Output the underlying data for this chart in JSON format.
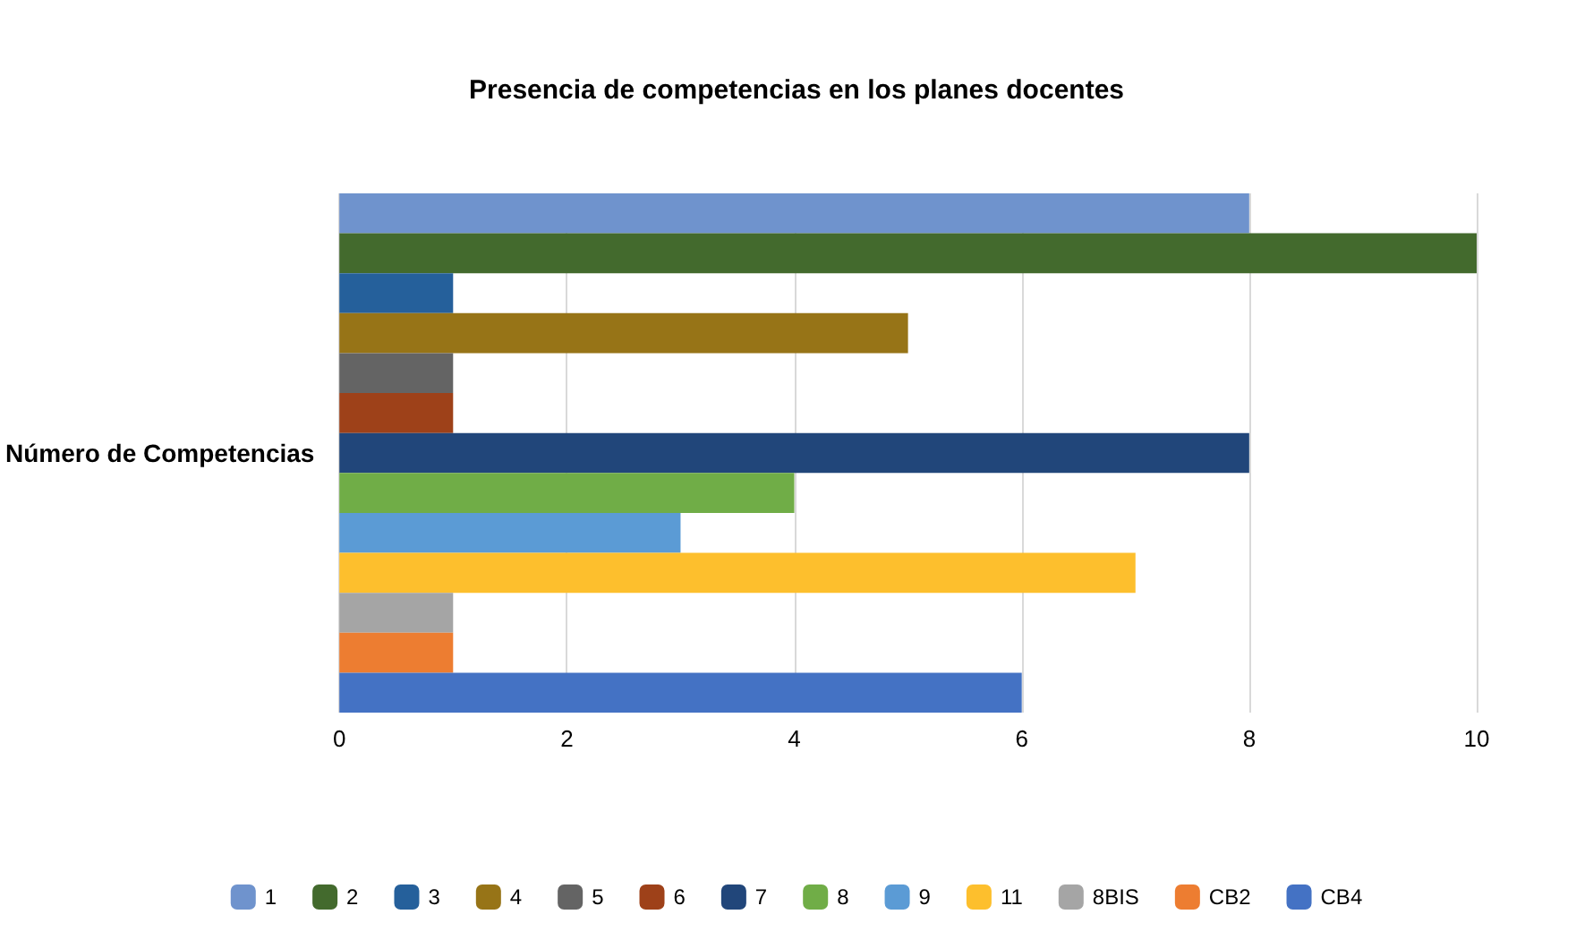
{
  "chart_data": {
    "type": "bar",
    "orientation": "horizontal",
    "title": "Presencia de competencias en los planes docentes",
    "ylabel": "Número de Competencias",
    "categories": [
      null,
      null,
      null,
      null,
      null,
      null,
      null,
      null,
      null,
      null,
      null,
      null,
      null
    ],
    "series": [
      {
        "name": "1",
        "color": "#6f93cd",
        "values": [
          8,
          null,
          null,
          null,
          null,
          null,
          null,
          null,
          null,
          null,
          null,
          null,
          null
        ]
      },
      {
        "name": "2",
        "color": "#436a2d",
        "values": [
          null,
          10,
          null,
          null,
          null,
          null,
          null,
          null,
          null,
          null,
          null,
          null,
          null
        ]
      },
      {
        "name": "3",
        "color": "#25609b",
        "values": [
          null,
          null,
          1,
          null,
          null,
          null,
          null,
          null,
          null,
          null,
          null,
          null,
          null
        ]
      },
      {
        "name": "4",
        "color": "#977417",
        "values": [
          null,
          null,
          null,
          5,
          null,
          null,
          null,
          null,
          null,
          null,
          null,
          null,
          null
        ]
      },
      {
        "name": "5",
        "color": "#646464",
        "values": [
          null,
          null,
          null,
          null,
          1,
          null,
          null,
          null,
          null,
          null,
          null,
          null,
          null
        ]
      },
      {
        "name": "6",
        "color": "#9e4119",
        "values": [
          null,
          null,
          null,
          null,
          null,
          1,
          null,
          null,
          null,
          null,
          null,
          null,
          null
        ]
      },
      {
        "name": "7",
        "color": "#21467a",
        "values": [
          null,
          null,
          null,
          null,
          null,
          null,
          8,
          null,
          null,
          null,
          null,
          null,
          null
        ]
      },
      {
        "name": "8",
        "color": "#70ad47",
        "values": [
          null,
          null,
          null,
          null,
          null,
          null,
          null,
          4,
          null,
          null,
          null,
          null,
          null
        ]
      },
      {
        "name": "9",
        "color": "#5b9bd5",
        "values": [
          null,
          null,
          null,
          null,
          null,
          null,
          null,
          null,
          3,
          null,
          null,
          null,
          null
        ]
      },
      {
        "name": "11",
        "color": "#fdbf2d",
        "values": [
          null,
          null,
          null,
          null,
          null,
          null,
          null,
          null,
          null,
          7,
          null,
          null,
          null
        ]
      },
      {
        "name": "8BIS",
        "color": "#a5a5a5",
        "values": [
          null,
          null,
          null,
          null,
          null,
          null,
          null,
          null,
          null,
          null,
          1,
          null,
          null
        ]
      },
      {
        "name": "CB2",
        "color": "#ed7d31",
        "values": [
          null,
          null,
          null,
          null,
          null,
          null,
          null,
          null,
          null,
          null,
          null,
          1,
          null
        ]
      },
      {
        "name": "CB4",
        "color": "#4472c4",
        "values": [
          null,
          null,
          null,
          null,
          null,
          null,
          null,
          null,
          null,
          null,
          null,
          null,
          6
        ]
      }
    ],
    "xlim": [
      0,
      10
    ],
    "xticks": [
      0,
      2,
      4,
      6,
      8,
      10
    ],
    "grid": "x",
    "legend": "bottom"
  }
}
